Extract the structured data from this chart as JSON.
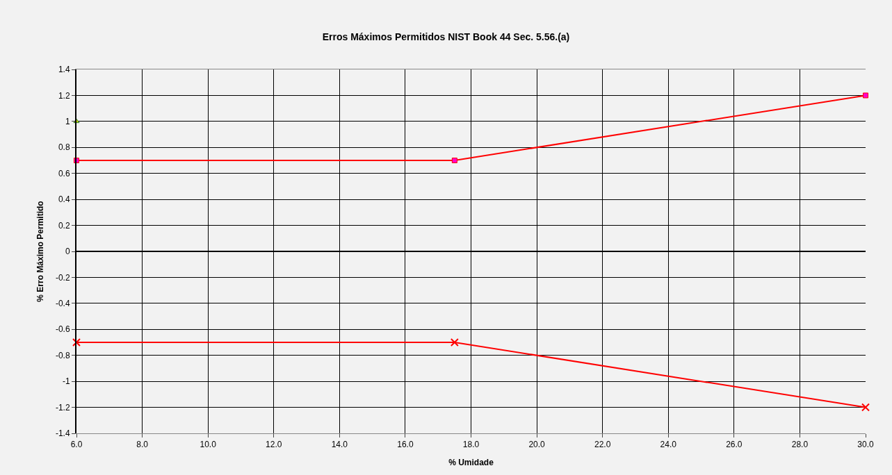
{
  "chart_data": {
    "type": "line",
    "title": "Erros Máximos Permitidos NIST Book 44 Sec. 5.56.(a)",
    "xlabel": "% Umidade",
    "ylabel": "% Erro Máximo Permitido",
    "series": [
      {
        "x": [
          6,
          17.5,
          30
        ],
        "values": [
          0.7,
          0.7,
          1.2
        ],
        "color": "#ff0000",
        "marker": "square"
      },
      {
        "x": [
          6,
          17.5,
          30
        ],
        "values": [
          -0.7,
          -0.7,
          -1.2
        ],
        "color": "#ff0000",
        "marker": "cross"
      },
      {
        "type": "scatter",
        "x": [
          6
        ],
        "values": [
          1
        ],
        "color": "#c8d400",
        "marker": "triangle"
      }
    ],
    "xlim": [
      6,
      30
    ],
    "xticks": [
      {
        "value": 6,
        "label": "6.0"
      },
      {
        "value": 8,
        "label": "8.0"
      },
      {
        "value": 10,
        "label": "10.0"
      },
      {
        "value": 12,
        "label": "12.0"
      },
      {
        "value": 14,
        "label": "14.0"
      },
      {
        "value": 16,
        "label": "16.0"
      },
      {
        "value": 18,
        "label": "18.0"
      },
      {
        "value": 20,
        "label": "20.0"
      },
      {
        "value": 22,
        "label": "22.0"
      },
      {
        "value": 24,
        "label": "24.0"
      },
      {
        "value": 26,
        "label": "26.0"
      },
      {
        "value": 28,
        "label": "28.0"
      },
      {
        "value": 30,
        "label": "30.0"
      }
    ],
    "ylim": [
      -1.4,
      1.4
    ],
    "yticks": [
      -1.4,
      -1.2,
      -1,
      -0.8,
      -0.6,
      -0.4,
      -0.2,
      0,
      0.2,
      0.4,
      0.6,
      0.8,
      1,
      1.2,
      1.4
    ],
    "grid": true
  }
}
